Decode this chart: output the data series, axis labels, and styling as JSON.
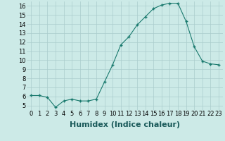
{
  "x": [
    0,
    1,
    2,
    3,
    4,
    5,
    6,
    7,
    8,
    9,
    10,
    11,
    12,
    13,
    14,
    15,
    16,
    17,
    18,
    19,
    20,
    21,
    22,
    23
  ],
  "y": [
    6.1,
    6.1,
    5.9,
    4.8,
    5.5,
    5.7,
    5.5,
    5.5,
    5.7,
    7.6,
    9.5,
    11.7,
    12.6,
    13.9,
    14.8,
    15.7,
    16.1,
    16.3,
    16.3,
    14.3,
    11.5,
    9.9,
    9.6,
    9.5
  ],
  "line_color": "#1a7a6e",
  "marker": "+",
  "marker_size": 3,
  "marker_lw": 1.0,
  "background_color": "#cceae7",
  "grid_color": "#aacccc",
  "xlabel": "Humidex (Indice chaleur)",
  "xlabel_fontsize": 8,
  "tick_fontsize": 6,
  "ylim": [
    4.5,
    16.5
  ],
  "xlim": [
    -0.5,
    23.5
  ],
  "yticks": [
    5,
    6,
    7,
    8,
    9,
    10,
    11,
    12,
    13,
    14,
    15,
    16
  ],
  "xticks": [
    0,
    1,
    2,
    3,
    4,
    5,
    6,
    7,
    8,
    9,
    10,
    11,
    12,
    13,
    14,
    15,
    16,
    17,
    18,
    19,
    20,
    21,
    22,
    23
  ]
}
